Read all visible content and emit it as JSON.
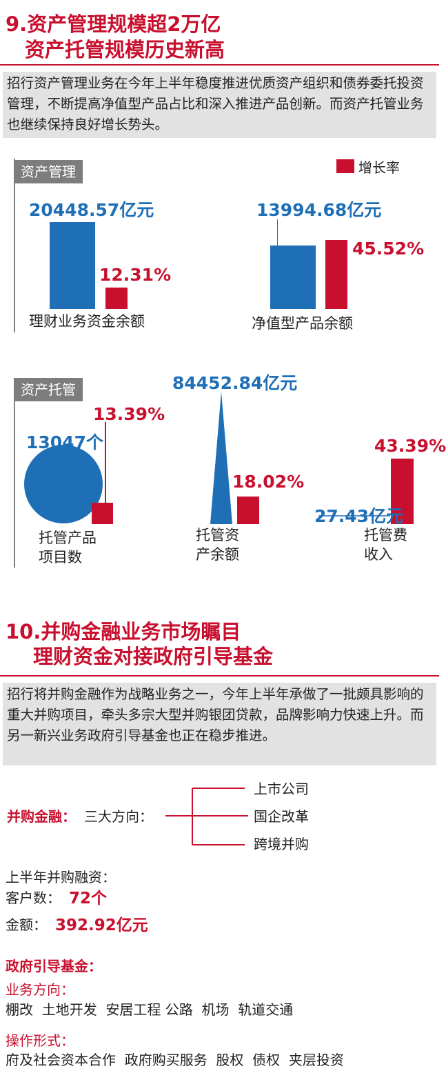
{
  "section9": {
    "title_line1": "9.资产管理规模超2万亿",
    "title_line2": "资产托管规模历史新高",
    "intro": "招行资产管理业务在今年上半年稳度推进优质资产组织和债券委托投资管理，不断提高净值型产品占比和深入推进产品创新。而资产托管业务也继续保持良好增长势头。",
    "legend_label": "增长率",
    "asset_mgmt_tag": "资产管理",
    "custody_tag": "资产托管"
  },
  "chart_data": [
    {
      "type": "bar",
      "title": "资产管理",
      "legend": [
        "增长率"
      ],
      "items": [
        {
          "category": "理财业务资金余额",
          "value_label": "20448.57亿元",
          "value": 20448.57,
          "unit": "亿元",
          "growth_label": "12.31%",
          "growth": 12.31
        },
        {
          "category": "净值型产品余额",
          "value_label": "13994.68亿元",
          "value": 13994.68,
          "unit": "亿元",
          "growth_label": "45.52%",
          "growth": 45.52
        }
      ]
    },
    {
      "type": "bar",
      "title": "资产托管",
      "items": [
        {
          "category": "托管产品项目数",
          "category_lines": [
            "托管产品",
            "项目数"
          ],
          "value_label": "13047个",
          "value": 13047,
          "unit": "个",
          "growth_label": "13.39%",
          "growth": 13.39
        },
        {
          "category": "托管资产余额",
          "category_lines": [
            "托管资",
            "产余额"
          ],
          "value_label": "84452.84亿元",
          "value": 84452.84,
          "unit": "亿元",
          "growth_label": "18.02%",
          "growth": 18.02
        },
        {
          "category": "托管费收入",
          "category_lines": [
            "托管费",
            "收入"
          ],
          "value_label": "27.43亿元",
          "value": 27.43,
          "unit": "亿元",
          "growth_label": "43.39%",
          "growth": 43.39
        }
      ]
    }
  ],
  "section10": {
    "title_line1": "10.并购金融业务市场瞩目",
    "title_line2": "理财资金对接政府引导基金",
    "intro": "招行将并购金融作为战略业务之一，今年上半年承做了一批颇具影响的重大并购项目，牵头多宗大型并购银团贷款，品牌影响力快速上升。而另一新兴业务政府引导基金也正在稳步推进。",
    "ma_label": "并购金融：",
    "ma_directions_label": "三大方向：",
    "directions": [
      "上市公司",
      "国企改革",
      "跨境并购"
    ],
    "half_year_label": "上半年并购融资：",
    "clients_label": "客户数：",
    "clients_value": "72个",
    "amount_label": "金额：",
    "amount_value": "392.92亿元",
    "gov_fund_label": "政府引导基金：",
    "business_direction_label": "业务方向：",
    "business_directions": "棚改  土地开发  安居工程 公路  机场  轨道交通",
    "operation_label": "操作形式：",
    "operation_forms": "府及社会资本合作  政府购买服务  股权  债权  夹层投资"
  }
}
